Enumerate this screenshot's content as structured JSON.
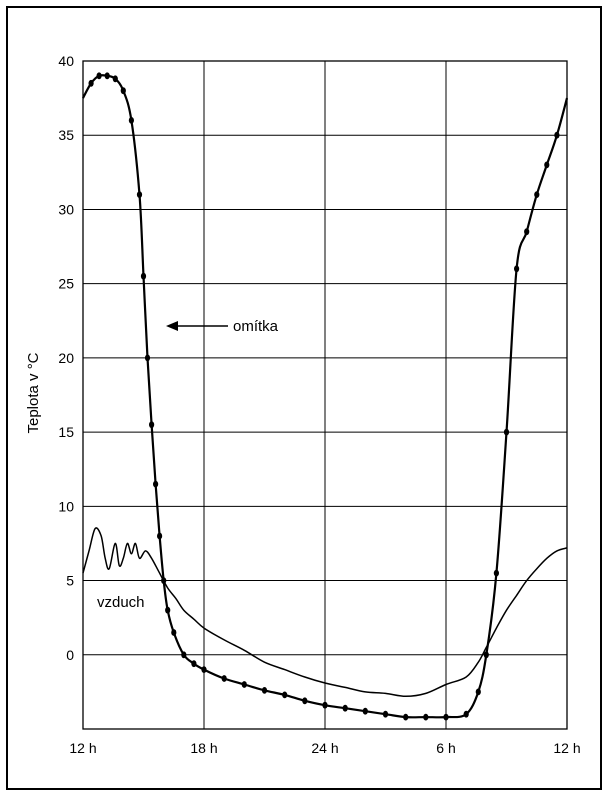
{
  "chart_data": {
    "type": "line",
    "title": "",
    "xlabel": "",
    "ylabel": "Teplota v °C",
    "xlim": [
      0,
      24
    ],
    "ylim": [
      -5,
      40
    ],
    "x_tick_labels": [
      "12 h",
      "18 h",
      "24 h",
      "6 h",
      "12 h"
    ],
    "y_ticks": [
      0,
      5,
      10,
      15,
      20,
      25,
      30,
      35,
      40
    ],
    "grid": true,
    "series": [
      {
        "name": "omítka",
        "marker": "dot",
        "x": [
          0,
          0.4,
          0.8,
          1.2,
          1.6,
          2.0,
          2.4,
          2.8,
          3.0,
          3.2,
          3.4,
          3.6,
          3.8,
          4.0,
          4.2,
          4.5,
          5.0,
          5.5,
          6.0,
          7.0,
          8.0,
          9.0,
          10.0,
          11.0,
          12.0,
          13.0,
          14.0,
          15.0,
          16.0,
          17.0,
          18.0,
          19.0,
          19.6,
          20.0,
          20.5,
          21.0,
          21.5,
          22.0,
          22.5,
          23.0,
          23.5,
          24.0
        ],
        "values": [
          37.5,
          38.5,
          39.0,
          39.0,
          38.8,
          38.0,
          36.0,
          31.0,
          25.5,
          20.0,
          15.5,
          11.5,
          8.0,
          5.0,
          3.0,
          1.5,
          0.0,
          -0.6,
          -1.0,
          -1.6,
          -2.0,
          -2.4,
          -2.7,
          -3.1,
          -3.4,
          -3.6,
          -3.8,
          -4.0,
          -4.2,
          -4.2,
          -4.2,
          -4.0,
          -2.5,
          0.0,
          5.5,
          15.0,
          26.0,
          28.5,
          31.0,
          33.0,
          35.0,
          37.5
        ]
      },
      {
        "name": "vzduch",
        "marker": "none",
        "x": [
          0,
          0.3,
          0.6,
          0.9,
          1.1,
          1.3,
          1.6,
          1.8,
          2.0,
          2.2,
          2.4,
          2.6,
          2.8,
          3.1,
          3.4,
          3.8,
          4.2,
          4.6,
          5.0,
          5.5,
          6.0,
          7.0,
          8.0,
          9.0,
          10.0,
          11.0,
          12.0,
          13.0,
          14.0,
          15.0,
          16.0,
          17.0,
          18.0,
          19.0,
          19.6,
          20.0,
          20.5,
          21.0,
          21.5,
          22.0,
          22.5,
          23.0,
          23.5,
          24.0
        ],
        "values": [
          5.5,
          7.0,
          8.5,
          8.0,
          6.5,
          5.8,
          7.5,
          6.0,
          6.5,
          7.5,
          6.8,
          7.5,
          6.5,
          7.0,
          6.5,
          5.5,
          4.5,
          3.8,
          3.0,
          2.4,
          1.8,
          1.0,
          0.3,
          -0.5,
          -1.0,
          -1.5,
          -1.9,
          -2.2,
          -2.5,
          -2.6,
          -2.8,
          -2.6,
          -2.0,
          -1.5,
          -0.5,
          0.5,
          1.8,
          3.0,
          4.0,
          5.0,
          5.8,
          6.5,
          7.0,
          7.2
        ]
      }
    ],
    "annotations": [
      {
        "text": "omítka",
        "target_series": "omítka",
        "arrow": true
      },
      {
        "text": "vzduch",
        "target_series": "vzduch",
        "arrow": false
      }
    ]
  }
}
